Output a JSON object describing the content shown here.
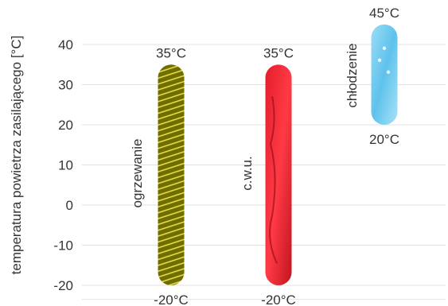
{
  "chart_data": {
    "type": "bar",
    "ylabel": "temperatura powietrza zasilającego [°C]",
    "ylim": [
      -20,
      45
    ],
    "yticks": [
      -20,
      -10,
      0,
      10,
      20,
      30,
      40
    ],
    "grid": true,
    "bars": [
      {
        "label": "ogrzewanie",
        "min": -20,
        "max": 35,
        "min_label": "-20°C",
        "max_label": "35°C",
        "fill": "yellow-olive stripes",
        "color": "#8a8a00"
      },
      {
        "label": "c.w.u.",
        "min": -20,
        "max": 35,
        "min_label": "-20°C",
        "max_label": "35°C",
        "fill": "red water splash",
        "color": "#f0303a"
      },
      {
        "label": "chłodzenie",
        "min": 20,
        "max": 45,
        "min_label": "20°C",
        "max_label": "45°C",
        "fill": "light blue ice",
        "color": "#7fd0f0"
      }
    ]
  }
}
